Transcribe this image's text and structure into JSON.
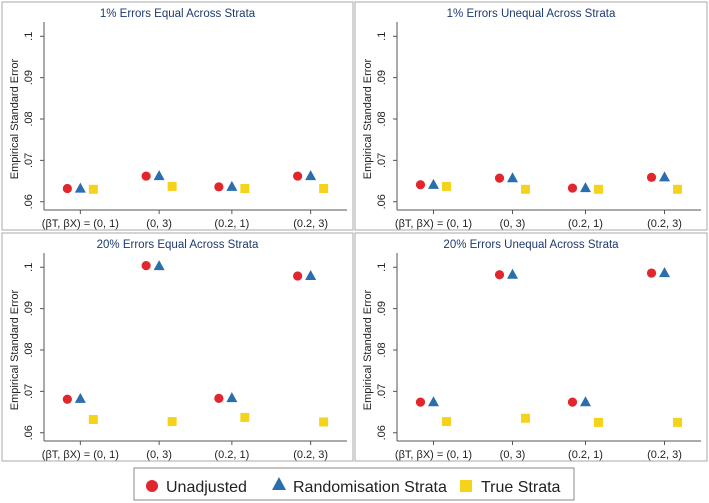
{
  "figure": {
    "legend": {
      "items": [
        {
          "label": "Unadjusted",
          "marker": "circle",
          "color": "#e1262d"
        },
        {
          "label": "Randomisation Strata",
          "marker": "triangle",
          "color": "#2a6ead"
        },
        {
          "label": "True Strata",
          "marker": "square",
          "color": "#f5d31a"
        }
      ]
    }
  },
  "chart_data": [
    {
      "type": "scatter",
      "title": "1% Errors Equal Across Strata",
      "xlabel": "",
      "ylabel": "Empirical Standard Error",
      "categories": [
        "(βT, βX) = (0, 1)",
        "(0, 3)",
        "(0.2, 1)",
        "(0.2, 3)"
      ],
      "yticks": [
        ".06",
        ".07",
        ".08",
        ".09",
        ".1"
      ],
      "ylim": [
        0.058,
        0.102
      ],
      "series": [
        {
          "name": "Unadjusted",
          "values": [
            0.0632,
            0.0662,
            0.0636,
            0.0662
          ]
        },
        {
          "name": "Randomisation Strata",
          "values": [
            0.0633,
            0.0663,
            0.0637,
            0.0663
          ]
        },
        {
          "name": "True Strata",
          "values": [
            0.063,
            0.0637,
            0.0632,
            0.0632
          ]
        }
      ]
    },
    {
      "type": "scatter",
      "title": "1% Errors Unequal Across Strata",
      "xlabel": "",
      "ylabel": "Empirical Standard Error",
      "categories": [
        "(βT, βX) = (0, 1)",
        "(0, 3)",
        "(0.2, 1)",
        "(0.2, 3)"
      ],
      "yticks": [
        ".06",
        ".07",
        ".08",
        ".09",
        ".1"
      ],
      "ylim": [
        0.058,
        0.102
      ],
      "series": [
        {
          "name": "Unadjusted",
          "values": [
            0.0641,
            0.0657,
            0.0633,
            0.0659
          ]
        },
        {
          "name": "Randomisation Strata",
          "values": [
            0.0642,
            0.0658,
            0.0634,
            0.066
          ]
        },
        {
          "name": "True Strata",
          "values": [
            0.0637,
            0.063,
            0.063,
            0.063
          ]
        }
      ]
    },
    {
      "type": "scatter",
      "title": "20% Errors Equal Across Strata",
      "xlabel": "",
      "ylabel": "Empirical Standard Error",
      "categories": [
        "(βT, βX) = (0, 1)",
        "(0, 3)",
        "(0.2, 1)",
        "(0.2, 3)"
      ],
      "yticks": [
        ".06",
        ".07",
        ".08",
        ".09",
        ".1"
      ],
      "ylim": [
        0.058,
        0.102
      ],
      "series": [
        {
          "name": "Unadjusted",
          "values": [
            0.0681,
            0.1004,
            0.0683,
            0.0979
          ]
        },
        {
          "name": "Randomisation Strata",
          "values": [
            0.0683,
            0.1004,
            0.0685,
            0.098
          ]
        },
        {
          "name": "True Strata",
          "values": [
            0.0632,
            0.0627,
            0.0637,
            0.0626
          ]
        }
      ]
    },
    {
      "type": "scatter",
      "title": "20% Errors Unequal Across Strata",
      "xlabel": "",
      "ylabel": "Empirical Standard Error",
      "categories": [
        "(βT, βX) = (0, 1)",
        "(0, 3)",
        "(0.2, 1)",
        "(0.2, 3)"
      ],
      "yticks": [
        ".06",
        ".07",
        ".08",
        ".09",
        ".1"
      ],
      "ylim": [
        0.058,
        0.102
      ],
      "series": [
        {
          "name": "Unadjusted",
          "values": [
            0.0674,
            0.0982,
            0.0674,
            0.0986
          ]
        },
        {
          "name": "Randomisation Strata",
          "values": [
            0.0675,
            0.0983,
            0.0675,
            0.0987
          ]
        },
        {
          "name": "True Strata",
          "values": [
            0.0627,
            0.0635,
            0.0625,
            0.0625
          ]
        }
      ]
    }
  ]
}
